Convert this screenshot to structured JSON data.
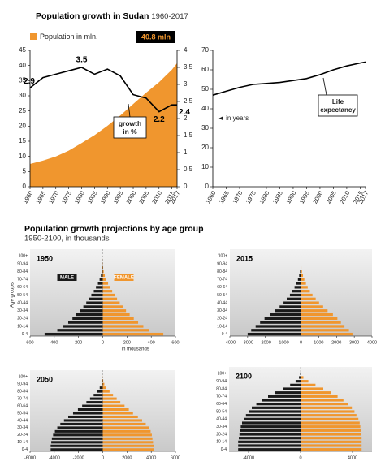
{
  "headings": {
    "top_title": "Population growth in Sudan",
    "top_subtitle": "1960-2017",
    "bottom_title": "Population growth projections by age group",
    "bottom_subtitle": "1950-2100, in thousands"
  },
  "chart_data": [
    {
      "type": "combo",
      "x": [
        1960,
        1965,
        1970,
        1975,
        1980,
        1985,
        1990,
        1995,
        2000,
        2005,
        2010,
        2015,
        2017
      ],
      "xlim": [
        1960,
        2017
      ],
      "xticks": [
        1960,
        1965,
        1970,
        1975,
        1980,
        1985,
        1990,
        1995,
        2000,
        2005,
        2010,
        2015,
        2017
      ],
      "ylim": [
        0,
        45
      ],
      "yticks": [
        0,
        5,
        10,
        15,
        20,
        25,
        30,
        35,
        40,
        45
      ],
      "y2lim": [
        0,
        4
      ],
      "y2ticks": [
        0,
        0.5,
        1,
        1.5,
        2,
        2.5,
        3,
        3.5,
        4
      ],
      "series": [
        {
          "name": "Population in mln.",
          "type": "area",
          "color": "#f0962e",
          "values": [
            7.5,
            8.6,
            10.0,
            11.9,
            14.4,
            17.0,
            20.1,
            23.5,
            27.3,
            31.0,
            34.5,
            38.6,
            40.8
          ],
          "value_labels": [
            null,
            null,
            null,
            null,
            null,
            null,
            null,
            null,
            null,
            null,
            null,
            null,
            "40.8 mln"
          ]
        },
        {
          "type": "line",
          "axis": "y2",
          "color": "#000000",
          "values": [
            2.9,
            3.2,
            3.3,
            3.4,
            3.5,
            3.3,
            3.45,
            3.25,
            2.7,
            2.6,
            2.2,
            2.4,
            2.4
          ],
          "value_labels": [
            "2.9",
            null,
            null,
            null,
            "3.5",
            null,
            null,
            null,
            null,
            null,
            "2.2",
            null,
            "2.4"
          ]
        }
      ],
      "annotations": [
        "growth in %"
      ]
    },
    {
      "type": "line",
      "x": [
        1960,
        1965,
        1970,
        1975,
        1980,
        1985,
        1990,
        1995,
        2000,
        2005,
        2010,
        2015,
        2017
      ],
      "xlim": [
        1960,
        2017
      ],
      "xticks": [
        1960,
        1965,
        1970,
        1975,
        1980,
        1985,
        1990,
        1995,
        2000,
        2005,
        2010,
        2015,
        2017
      ],
      "ylim": [
        0,
        70
      ],
      "yticks": [
        0,
        10,
        20,
        30,
        40,
        50,
        60,
        70
      ],
      "series": [
        {
          "color": "#000000",
          "values": [
            47,
            49,
            51,
            52.5,
            53,
            53.5,
            54.5,
            55.5,
            57.5,
            60,
            62,
            63.5,
            64
          ]
        }
      ],
      "annotations": [
        "Life expectancy",
        "◄ in years"
      ]
    },
    {
      "type": "pyramid",
      "title": "1950",
      "xlabel": "in thousands",
      "ylabel": "Age groups",
      "categories": [
        "0-4",
        null,
        "10-14",
        null,
        "20-24",
        null,
        "30-34",
        null,
        "40-44",
        null,
        "50-54",
        null,
        "60-64",
        null,
        "70-74",
        null,
        "80-84",
        null,
        "90-94",
        null,
        "100+"
      ],
      "xlim": [
        -600,
        600
      ],
      "xticks": [
        {
          "value": -600,
          "label": "600"
        },
        {
          "value": -400,
          "label": "400"
        },
        {
          "value": -200,
          "label": "200"
        },
        0,
        200,
        400,
        600
      ],
      "series": [
        {
          "name": "MALE",
          "color": "#1a1a1a",
          "values": [
            480,
            375,
            325,
            285,
            250,
            218,
            188,
            160,
            136,
            114,
            94,
            74,
            56,
            40,
            26,
            15,
            7,
            3,
            1,
            0.4,
            0.1
          ]
        },
        {
          "name": "FEMALE",
          "color": "#f0962e",
          "values": [
            500,
            385,
            335,
            292,
            256,
            222,
            192,
            164,
            140,
            118,
            98,
            78,
            60,
            44,
            29,
            17,
            8,
            3.5,
            1.2,
            0.5,
            0.1
          ]
        }
      ]
    },
    {
      "type": "pyramid",
      "title": "2015",
      "categories": [
        "0-4",
        null,
        "10-14",
        null,
        "20-24",
        null,
        "30-34",
        null,
        "40-44",
        null,
        "50-54",
        null,
        "60-64",
        null,
        "70-74",
        null,
        "80-84",
        null,
        "90-94",
        null,
        "100+"
      ],
      "xlim": [
        -4000,
        4000
      ],
      "xticks": [
        -4000,
        -3000,
        -2000,
        -1000,
        0,
        1000,
        2000,
        3000,
        4000
      ],
      "series": [
        {
          "color": "#1a1a1a",
          "values": [
            3000,
            2800,
            2550,
            2300,
            2050,
            1750,
            1450,
            1200,
            980,
            800,
            620,
            480,
            360,
            260,
            170,
            100,
            50,
            20,
            6,
            1,
            0.2
          ]
        },
        {
          "color": "#f0962e",
          "values": [
            2900,
            2700,
            2450,
            2250,
            2050,
            1800,
            1500,
            1250,
            1020,
            830,
            650,
            500,
            380,
            280,
            190,
            115,
            60,
            25,
            8,
            1.5,
            0.3
          ]
        }
      ]
    },
    {
      "type": "pyramid",
      "title": "2050",
      "categories": [
        "0-4",
        null,
        "10-14",
        null,
        "20-24",
        null,
        "30-34",
        null,
        "40-44",
        null,
        "50-54",
        null,
        "60-64",
        null,
        "70-74",
        null,
        "80-84",
        null,
        "90-94",
        null,
        "100+"
      ],
      "xlim": [
        -6000,
        6000
      ],
      "xticks": [
        -6000,
        -4000,
        -2000,
        0,
        2000,
        4000,
        6000
      ],
      "series": [
        {
          "color": "#1a1a1a",
          "values": [
            4300,
            4300,
            4250,
            4200,
            4100,
            3950,
            3750,
            3500,
            3200,
            2850,
            2450,
            2050,
            1700,
            1350,
            1050,
            750,
            480,
            250,
            100,
            30,
            5
          ]
        },
        {
          "color": "#f0962e",
          "values": [
            4200,
            4200,
            4150,
            4100,
            4050,
            3950,
            3800,
            3550,
            3250,
            2900,
            2500,
            2150,
            1800,
            1450,
            1150,
            850,
            560,
            300,
            130,
            40,
            8
          ]
        }
      ]
    },
    {
      "type": "pyramid",
      "title": "2100",
      "categories": [
        "0-4",
        null,
        "10-14",
        null,
        "20-24",
        null,
        "30-34",
        null,
        "40-44",
        null,
        "50-54",
        null,
        "60-64",
        null,
        "70-74",
        null,
        "80-84",
        null,
        "90-94",
        null,
        "100+"
      ],
      "xlim": [
        -5500,
        5500
      ],
      "xticks": [
        -4000,
        0,
        4000
      ],
      "series": [
        {
          "color": "#1a1a1a",
          "values": [
            4800,
            4800,
            4800,
            4750,
            4700,
            4650,
            4600,
            4500,
            4350,
            4200,
            4000,
            3750,
            3400,
            3000,
            2500,
            1950,
            1350,
            800,
            380,
            120,
            25
          ]
        },
        {
          "color": "#f0962e",
          "values": [
            4700,
            4700,
            4700,
            4700,
            4650,
            4650,
            4600,
            4550,
            4450,
            4300,
            4150,
            3950,
            3650,
            3300,
            2850,
            2350,
            1750,
            1150,
            600,
            220,
            50
          ]
        }
      ]
    }
  ]
}
